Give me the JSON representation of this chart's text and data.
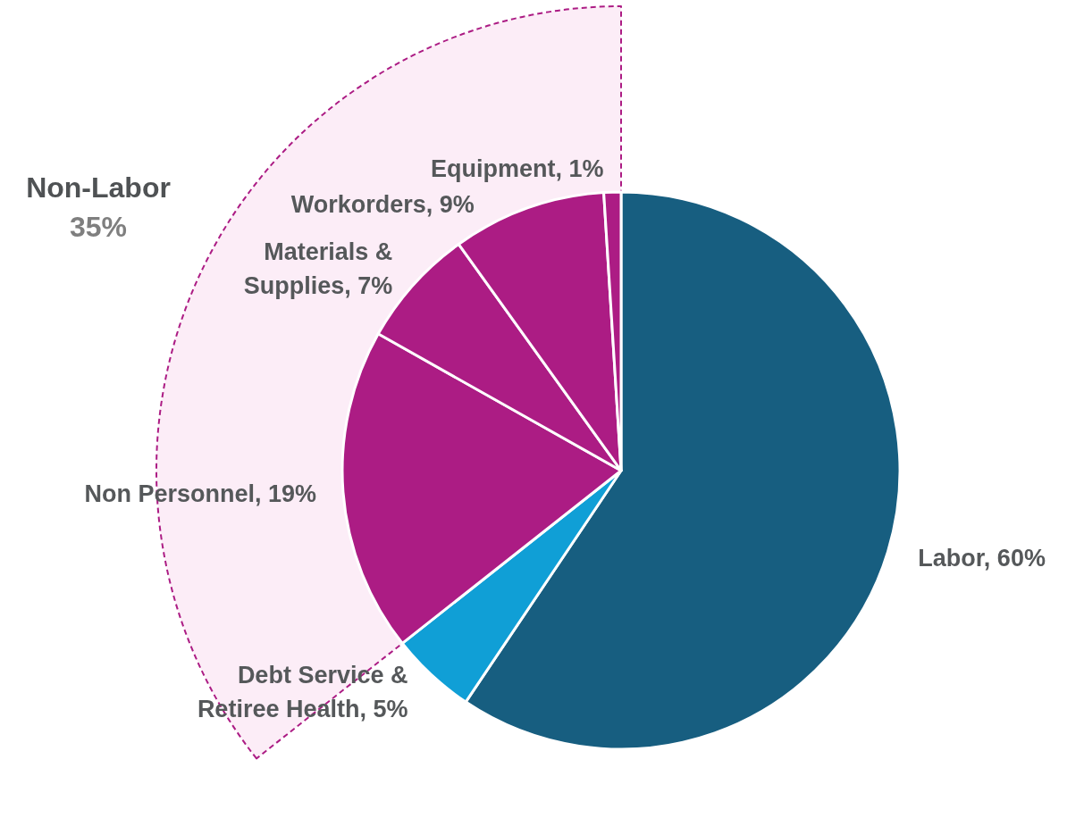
{
  "chart_data": {
    "type": "pie",
    "categories": [
      "Labor",
      "Debt Service & Retiree Health",
      "Non Personnel",
      "Materials & Supplies",
      "Workorders",
      "Equipment"
    ],
    "values": [
      60,
      5,
      19,
      7,
      9,
      1
    ],
    "value_labels": [
      "60%",
      "5%",
      "19%",
      "7%",
      "9%",
      "1%"
    ],
    "colors": [
      "#175e80",
      "#109fd6",
      "#ac1c84",
      "#ac1c84",
      "#ac1c84",
      "#ac1c84"
    ],
    "legend": false,
    "annotations": [
      "Non-Labor",
      "35%"
    ]
  }
}
